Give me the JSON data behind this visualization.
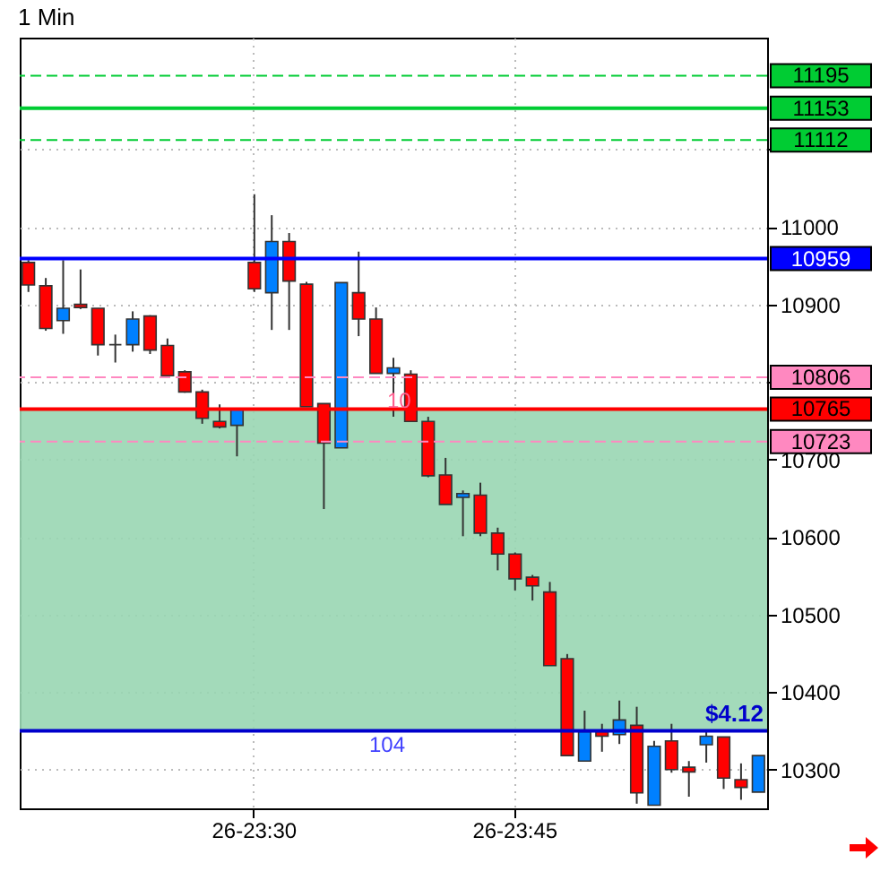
{
  "chart_data": {
    "type": "candlestick",
    "title": "1 Min",
    "categories": [
      null,
      null,
      null,
      null,
      null,
      null,
      null,
      null,
      null,
      null,
      null,
      null,
      null,
      "26-23:30",
      null,
      null,
      null,
      null,
      null,
      null,
      null,
      null,
      null,
      null,
      null,
      null,
      null,
      null,
      "26-23:45",
      null,
      null,
      null,
      null,
      null,
      null,
      null,
      null,
      null,
      null,
      null,
      null,
      null,
      null
    ],
    "ohlc": [
      [
        10954,
        10957,
        10916,
        10925
      ],
      [
        10924,
        10934,
        10866,
        10869
      ],
      [
        10879,
        10957,
        10862,
        10895
      ],
      [
        10900,
        10945,
        10894,
        10896
      ],
      [
        10895,
        10895,
        10834,
        10848
      ],
      [
        10848,
        10861,
        10825,
        10848
      ],
      [
        10848,
        10891,
        10839,
        10881
      ],
      [
        10885,
        10886,
        10836,
        10841
      ],
      [
        10847,
        10856,
        10808,
        10808
      ],
      [
        10813,
        10815,
        10786,
        10787
      ],
      [
        10787,
        10790,
        10746,
        10753
      ],
      [
        10749,
        10771,
        10740,
        10742
      ],
      [
        10744,
        10765,
        10704,
        10765
      ],
      [
        10954,
        11042,
        10916,
        10920
      ],
      [
        10915,
        11015,
        10867,
        10981
      ],
      [
        10981,
        10992,
        10867,
        10930
      ],
      [
        10926,
        10929,
        10768,
        10768
      ],
      [
        10772,
        10772,
        10636,
        10721
      ],
      [
        10715,
        10928,
        10715,
        10928
      ],
      [
        10915,
        10968,
        10859,
        10881
      ],
      [
        10881,
        10896,
        10811,
        10811
      ],
      [
        10811,
        10831,
        10755,
        10818
      ],
      [
        10810,
        10815,
        10749,
        10749
      ],
      [
        10749,
        10755,
        10677,
        10679
      ],
      [
        10680,
        10702,
        10642,
        10642
      ],
      [
        10651,
        10660,
        10601,
        10656
      ],
      [
        10654,
        10670,
        10601,
        10605
      ],
      [
        10605,
        10612,
        10557,
        10578
      ],
      [
        10578,
        10580,
        10531,
        10546
      ],
      [
        10548,
        10551,
        10518,
        10537
      ],
      [
        10529,
        10542,
        10434,
        10434
      ],
      [
        10443,
        10449,
        10318,
        10318
      ],
      [
        10311,
        10376,
        10311,
        10349
      ],
      [
        10349,
        10359,
        10323,
        10343
      ],
      [
        10345,
        10389,
        10333,
        10364
      ],
      [
        10357,
        10381,
        10256,
        10270
      ],
      [
        10254,
        10337,
        10254,
        10330
      ],
      [
        10337,
        10359,
        10296,
        10300
      ],
      [
        10303,
        10311,
        10265,
        10297
      ],
      [
        10332,
        10351,
        10309,
        10343
      ],
      [
        10342,
        10342,
        10275,
        10289
      ],
      [
        10287,
        10308,
        10261,
        10277
      ],
      [
        10271,
        10318,
        10271,
        10318
      ]
    ],
    "colors": [
      "#ff0000",
      "#ff0000",
      "#0080ff",
      "#ff0000",
      "#ff0000",
      "#333333",
      "#0080ff",
      "#ff0000",
      "#ff0000",
      "#ff0000",
      "#ff0000",
      "#ff0000",
      "#0080ff",
      "#ff0000",
      "#0080ff",
      "#ff0000",
      "#ff0000",
      "#ff0000",
      "#0080ff",
      "#ff0000",
      "#ff0000",
      "#0080ff",
      "#ff0000",
      "#ff0000",
      "#ff0000",
      "#0080ff",
      "#ff0000",
      "#ff0000",
      "#ff0000",
      "#ff0000",
      "#ff0000",
      "#ff0000",
      "#0080ff",
      "#ff0000",
      "#0080ff",
      "#ff0000",
      "#0080ff",
      "#ff0000",
      "#ff0000",
      "#0080ff",
      "#ff0000",
      "#ff0000",
      "#0080ff"
    ],
    "ylim": [
      10250,
      11244
    ],
    "yticks": [
      10300,
      10400,
      10500,
      10600,
      10700,
      {
        "value": 10800,
        "label": null
      },
      10900,
      11000,
      {
        "value": 11100,
        "label": null
      }
    ],
    "grid": true,
    "ref_lines": [
      {
        "axis": "y",
        "value": 11195,
        "label": "11195",
        "color": "#00cc33",
        "line_style": "dashed"
      },
      {
        "axis": "y",
        "value": 11153,
        "label": "11153",
        "color": "#00cc33",
        "line_style": "solid"
      },
      {
        "axis": "y",
        "value": 11112,
        "label": "11112",
        "color": "#00cc33",
        "line_style": "dashed"
      },
      {
        "axis": "y",
        "value": 10959,
        "label": "10959",
        "color": "#0000ff",
        "line_style": "solid"
      },
      {
        "axis": "y",
        "value": 10806,
        "label": "10806",
        "color": "#ff88c0",
        "line_style": "dashed"
      },
      {
        "axis": "y",
        "value": 10765,
        "label": "10765",
        "color": "#ff0000",
        "line_style": "solid"
      },
      {
        "axis": "y",
        "value": 10723,
        "label": "10723",
        "color": "#ff88c0",
        "line_style": "dashed"
      },
      {
        "axis": "y",
        "value": 10350,
        "color": "#0000cc",
        "line_style": "solid"
      }
    ],
    "bands": [
      {
        "axis": "y",
        "from": 10350,
        "to": 10765,
        "color": "#99d6b3"
      }
    ],
    "annotations": [
      {
        "text": "10",
        "y": 10806
      },
      {
        "text": "104",
        "y": 10350
      },
      {
        "text": "$4.12",
        "y": 10350
      }
    ]
  }
}
